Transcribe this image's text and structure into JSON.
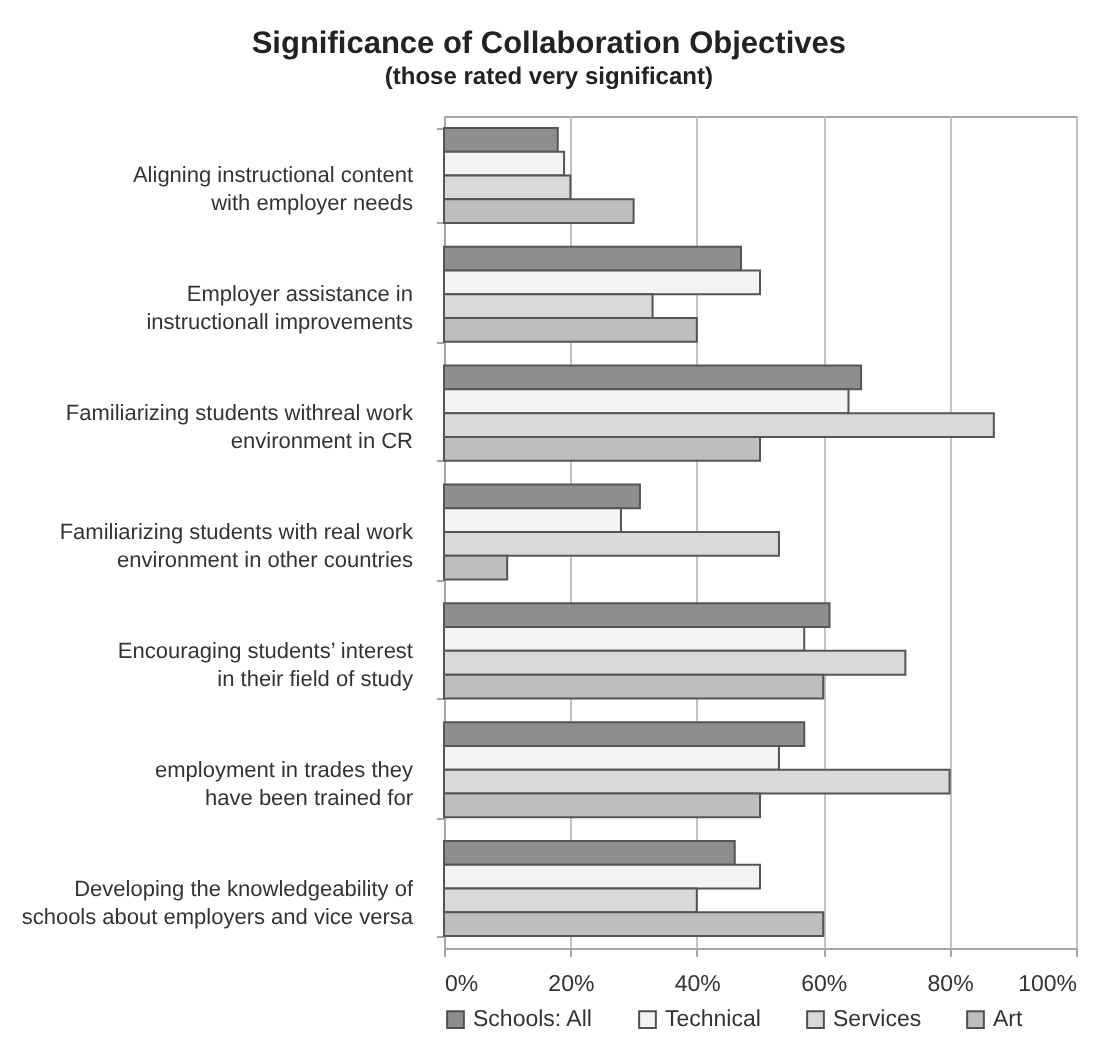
{
  "chart_data": {
    "type": "bar",
    "orientation": "horizontal",
    "title": "Significance of Collaboration Objectives",
    "subtitle": "(those rated very significant)",
    "categories": [
      "Aligning instructional content\nwith employer needs",
      "Employer assistance in\ninstructionall improvements",
      "Familiarizing students withreal work\nenvironment in CR",
      "Familiarizing students with real work\nenvironment in other countries",
      "Encouraging students’ interest\nin their field of study",
      "employment in trades they\nhave been trained for",
      "Developing the knowledgeability of\nschools about employers and vice versa"
    ],
    "series": [
      {
        "name": "Schools: All",
        "color": "#8e8e90",
        "values": [
          18,
          47,
          66,
          31,
          61,
          57,
          46
        ]
      },
      {
        "name": "Technical",
        "color": "#f3f3f3",
        "values": [
          19,
          50,
          64,
          28,
          57,
          53,
          50
        ]
      },
      {
        "name": "Services",
        "color": "#d9d9db",
        "values": [
          20,
          33,
          87,
          53,
          73,
          80,
          40
        ]
      },
      {
        "name": "Art",
        "color": "#bebec0",
        "values": [
          30,
          40,
          50,
          10,
          60,
          50,
          60
        ]
      }
    ],
    "xlim": [
      0,
      100
    ],
    "xticks": [
      {
        "value": 0,
        "label": "0%"
      },
      {
        "value": 20,
        "label": "20%"
      },
      {
        "value": 40,
        "label": "40%"
      },
      {
        "value": 60,
        "label": "60%"
      },
      {
        "value": 80,
        "label": "80%"
      },
      {
        "value": 100,
        "label": "100%"
      }
    ],
    "grid": "x",
    "legend": "bottom"
  }
}
